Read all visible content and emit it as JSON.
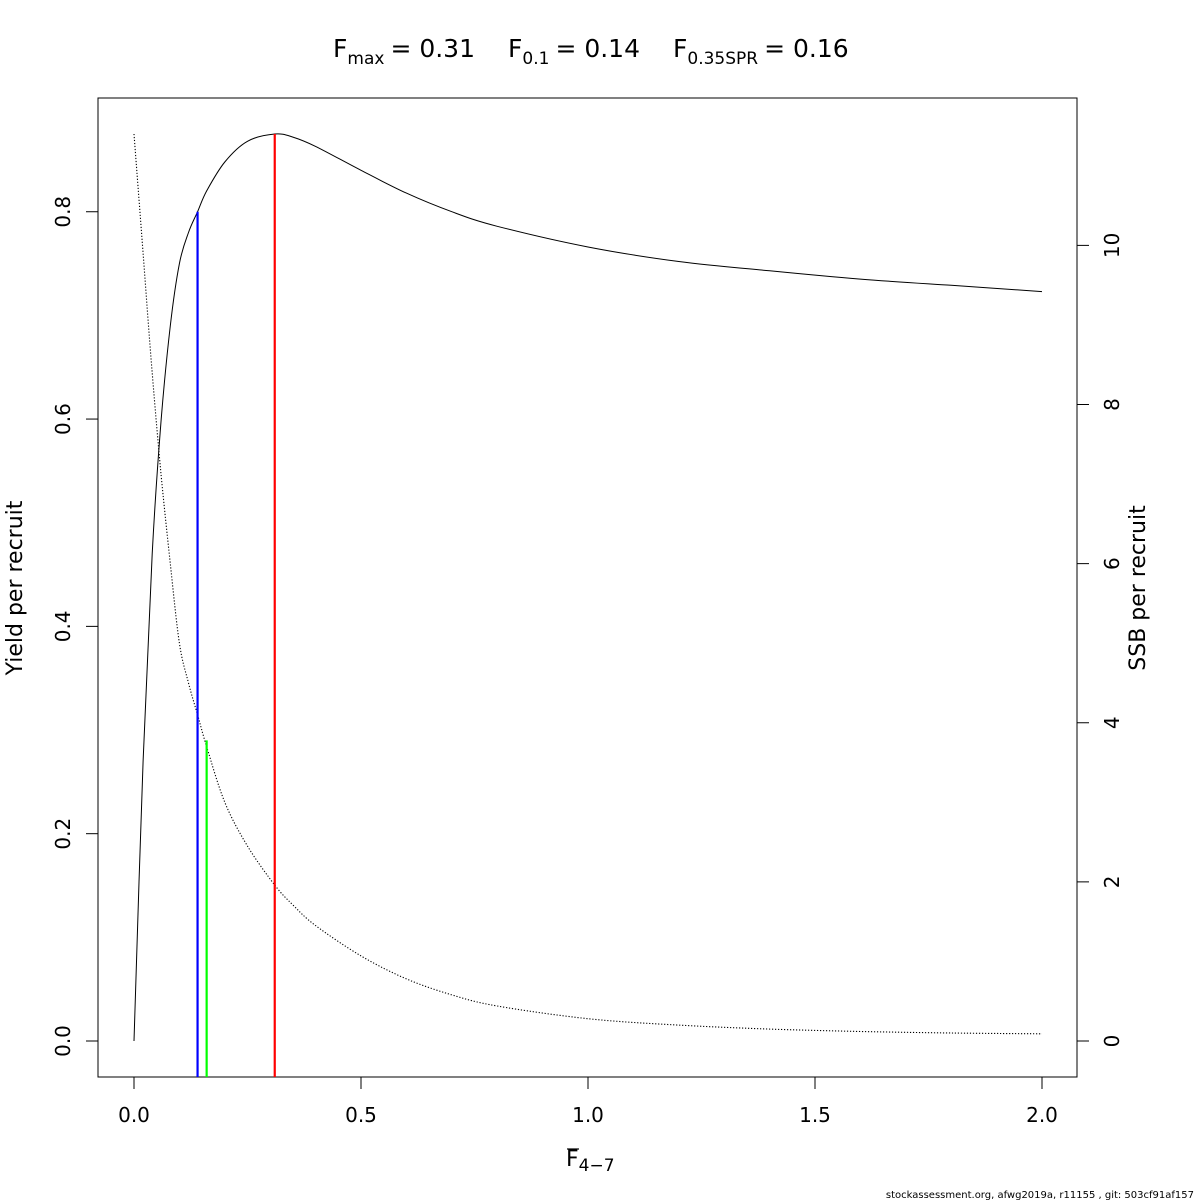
{
  "header": {
    "fmax_label": "F",
    "fmax_sub": "max",
    "fmax_value": "= 0.31",
    "f01_label": "F",
    "f01_sub": "0.1",
    "f01_value": "= 0.14",
    "fspr_label": "F",
    "fspr_sub": "0.35SPR",
    "fspr_value": "= 0.16"
  },
  "footer": "stockassessment.org, afwg2019a, r11155 , git: 503cf91af157",
  "chart_data": {
    "type": "line",
    "xlabel": "F",
    "xlabel_sub": "4−7",
    "ylabel_left": "Yield per recruit",
    "ylabel_right": "SSB per recruit",
    "xlim": [
      0,
      2
    ],
    "ylim_left": [
      0,
      0.875
    ],
    "ylim_right": [
      0,
      11.4
    ],
    "x_ticks": [
      "0.0",
      "0.5",
      "1.0",
      "1.5",
      "2.0"
    ],
    "y_left_ticks": [
      "0.0",
      "0.2",
      "0.4",
      "0.6",
      "0.8"
    ],
    "y_right_ticks": [
      "0",
      "2",
      "4",
      "6",
      "8",
      "10"
    ],
    "x": [
      0,
      0.02,
      0.04,
      0.06,
      0.08,
      0.1,
      0.12,
      0.14,
      0.16,
      0.2,
      0.25,
      0.31,
      0.35,
      0.4,
      0.5,
      0.6,
      0.7,
      0.8,
      1.0,
      1.2,
      1.4,
      1.6,
      1.8,
      2.0
    ],
    "series": [
      {
        "name": "Yield per recruit",
        "axis": "left",
        "style": "solid",
        "color": "#000000",
        "values": [
          0,
          0.27,
          0.47,
          0.6,
          0.69,
          0.75,
          0.78,
          0.8,
          0.82,
          0.848,
          0.868,
          0.875,
          0.872,
          0.863,
          0.84,
          0.818,
          0.8,
          0.786,
          0.766,
          0.752,
          0.743,
          0.735,
          0.729,
          0.723
        ]
      },
      {
        "name": "SSB per recruit",
        "axis": "right",
        "style": "dotted",
        "color": "#000000",
        "values": [
          11.4,
          9.9,
          8.4,
          7.1,
          6.0,
          5.0,
          4.5,
          4.1,
          3.7,
          3.0,
          2.45,
          1.96,
          1.71,
          1.45,
          1.07,
          0.78,
          0.58,
          0.44,
          0.28,
          0.2,
          0.15,
          0.12,
          0.1,
          0.09
        ]
      }
    ],
    "reference_lines": [
      {
        "name": "F0.1",
        "x": 0.14,
        "y_top": 0.8,
        "color": "#0000ff"
      },
      {
        "name": "F0.35SPR",
        "x": 0.16,
        "y_top": 0.29,
        "color": "#00ff00"
      },
      {
        "name": "Fmax",
        "x": 0.31,
        "y_top": 0.875,
        "color": "#ff0000"
      }
    ],
    "grid": false,
    "legend": "none"
  }
}
